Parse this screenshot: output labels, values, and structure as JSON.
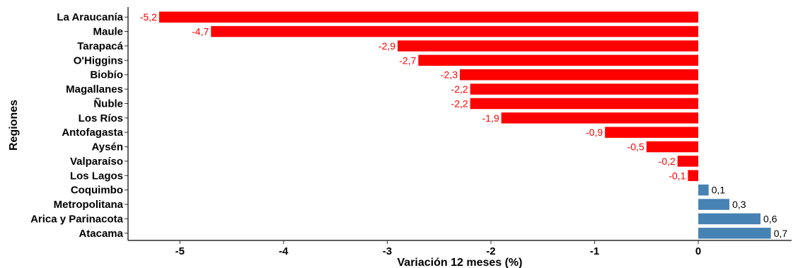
{
  "chart_data": {
    "type": "bar",
    "orientation": "horizontal",
    "xlabel": "Variación 12 meses (%)",
    "ylabel": "Regiones",
    "xlim": [
      -5.5,
      0.9
    ],
    "xticks": [
      -5,
      -4,
      -3,
      -2,
      -1,
      0
    ],
    "grid": false,
    "legend": "none",
    "colors": {
      "negative": "#ff0000",
      "positive": "#4682b4"
    },
    "categories": [
      "La Araucanía",
      "Maule",
      "Tarapacá",
      "O'Higgins",
      "Biobío",
      "Magallanes",
      "Ñuble",
      "Los Ríos",
      "Antofagasta",
      "Aysén",
      "Valparaíso",
      "Los Lagos",
      "Coquimbo",
      "Metropolitana",
      "Arica y Parinacota",
      "Atacama"
    ],
    "values": [
      -5.2,
      -4.7,
      -2.9,
      -2.7,
      -2.3,
      -2.2,
      -2.2,
      -1.9,
      -0.9,
      -0.5,
      -0.2,
      -0.1,
      0.1,
      0.3,
      0.6,
      0.7
    ],
    "value_labels": [
      "-5,2",
      "-4,7",
      "-2,9",
      "-2,7",
      "-2,3",
      "-2,2",
      "-2,2",
      "-1,9",
      "-0,9",
      "-0,5",
      "-0,2",
      "-0,1",
      "0,1",
      "0,3",
      "0,6",
      "0,7"
    ]
  }
}
